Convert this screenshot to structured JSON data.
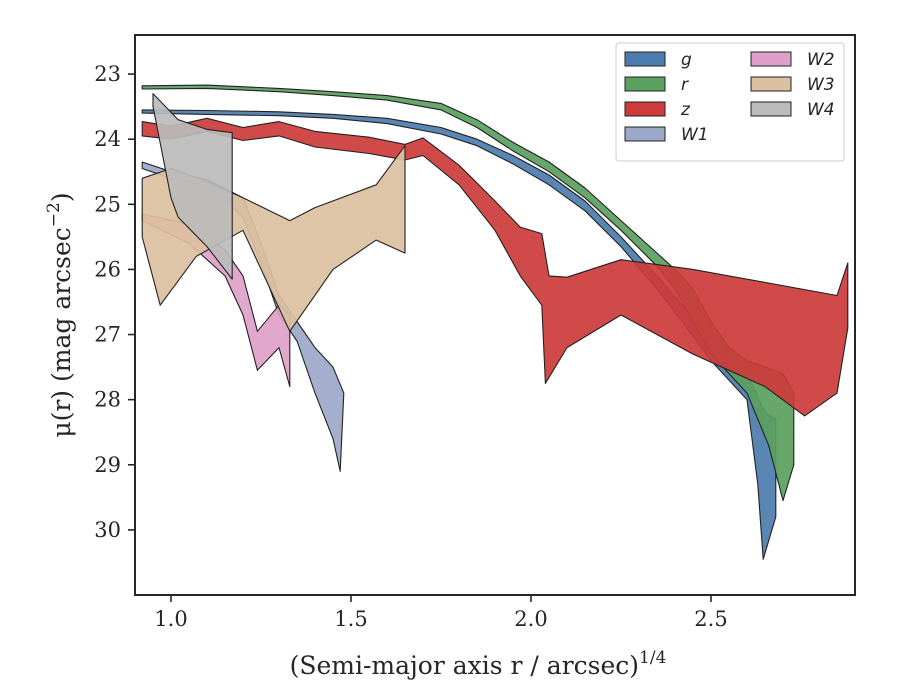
{
  "chart_data": {
    "type": "area",
    "xlabel": "(Semi-major axis r / arcsec)",
    "xlabel_superscript": "1/4",
    "ylabel": "μ(r) (mag arcsec",
    "ylabel_superscript": "−2",
    "ylabel_close": ")",
    "xlim": [
      0.9,
      2.9
    ],
    "ylim": [
      31.0,
      22.4
    ],
    "y_inverted": true,
    "x_ticks": [
      1.0,
      1.5,
      2.0,
      2.5
    ],
    "x_tick_labels": [
      "1.0",
      "1.5",
      "2.0",
      "2.5"
    ],
    "y_ticks": [
      23,
      24,
      25,
      26,
      27,
      28,
      29,
      30
    ],
    "y_tick_labels": [
      "23",
      "24",
      "25",
      "26",
      "27",
      "28",
      "29",
      "30"
    ],
    "grid": false,
    "legend_placement": "top-right",
    "legend_columns": 2,
    "series": [
      {
        "name": "g",
        "color": "#4c7cad",
        "upper": [
          [
            0.92,
            23.55
          ],
          [
            1.1,
            23.56
          ],
          [
            1.3,
            23.58
          ],
          [
            1.45,
            23.62
          ],
          [
            1.6,
            23.68
          ],
          [
            1.75,
            23.82
          ],
          [
            1.85,
            24.0
          ],
          [
            1.95,
            24.25
          ],
          [
            2.05,
            24.55
          ],
          [
            2.15,
            24.95
          ],
          [
            2.25,
            25.5
          ],
          [
            2.35,
            26.1
          ],
          [
            2.42,
            26.55
          ],
          [
            2.5,
            27.1
          ],
          [
            2.55,
            27.5
          ],
          [
            2.6,
            27.6
          ],
          [
            2.65,
            28.2
          ],
          [
            2.68,
            28.3
          ]
        ],
        "lower": [
          [
            0.92,
            23.6
          ],
          [
            1.1,
            23.62
          ],
          [
            1.3,
            23.64
          ],
          [
            1.45,
            23.68
          ],
          [
            1.6,
            23.76
          ],
          [
            1.75,
            23.92
          ],
          [
            1.85,
            24.1
          ],
          [
            1.95,
            24.38
          ],
          [
            2.05,
            24.7
          ],
          [
            2.15,
            25.1
          ],
          [
            2.25,
            25.65
          ],
          [
            2.35,
            26.3
          ],
          [
            2.42,
            26.8
          ],
          [
            2.5,
            27.4
          ],
          [
            2.55,
            27.7
          ],
          [
            2.6,
            28.0
          ],
          [
            2.63,
            29.3
          ],
          [
            2.645,
            30.45
          ],
          [
            2.68,
            29.8
          ]
        ]
      },
      {
        "name": "r",
        "color": "#5aa05e",
        "upper": [
          [
            0.92,
            23.18
          ],
          [
            1.1,
            23.17
          ],
          [
            1.3,
            23.22
          ],
          [
            1.45,
            23.27
          ],
          [
            1.6,
            23.33
          ],
          [
            1.75,
            23.45
          ],
          [
            1.85,
            23.7
          ],
          [
            1.95,
            24.05
          ],
          [
            2.05,
            24.35
          ],
          [
            2.15,
            24.75
          ],
          [
            2.25,
            25.25
          ],
          [
            2.35,
            25.75
          ],
          [
            2.4,
            26.0
          ],
          [
            2.45,
            26.3
          ],
          [
            2.5,
            26.8
          ],
          [
            2.55,
            27.2
          ],
          [
            2.6,
            27.4
          ],
          [
            2.7,
            27.6
          ],
          [
            2.73,
            27.9
          ]
        ],
        "lower": [
          [
            0.92,
            23.23
          ],
          [
            1.1,
            23.22
          ],
          [
            1.3,
            23.27
          ],
          [
            1.45,
            23.33
          ],
          [
            1.6,
            23.4
          ],
          [
            1.75,
            23.55
          ],
          [
            1.85,
            23.82
          ],
          [
            1.95,
            24.18
          ],
          [
            2.05,
            24.5
          ],
          [
            2.15,
            24.9
          ],
          [
            2.25,
            25.4
          ],
          [
            2.35,
            25.95
          ],
          [
            2.4,
            26.3
          ],
          [
            2.45,
            26.8
          ],
          [
            2.5,
            27.3
          ],
          [
            2.6,
            27.9
          ],
          [
            2.66,
            28.7
          ],
          [
            2.7,
            29.55
          ],
          [
            2.73,
            29.0
          ]
        ]
      },
      {
        "name": "z",
        "color": "#cd3b3b",
        "upper": [
          [
            0.92,
            23.73
          ],
          [
            1.0,
            23.8
          ],
          [
            1.1,
            23.68
          ],
          [
            1.2,
            23.82
          ],
          [
            1.3,
            23.73
          ],
          [
            1.4,
            23.88
          ],
          [
            1.55,
            23.97
          ],
          [
            1.65,
            24.08
          ],
          [
            1.7,
            23.98
          ],
          [
            1.8,
            24.4
          ],
          [
            1.9,
            24.95
          ],
          [
            1.97,
            25.35
          ],
          [
            2.03,
            25.45
          ],
          [
            2.05,
            26.1
          ],
          [
            2.1,
            26.12
          ],
          [
            2.25,
            25.85
          ],
          [
            2.45,
            26.0
          ],
          [
            2.65,
            26.2
          ],
          [
            2.85,
            26.4
          ],
          [
            2.88,
            25.9
          ]
        ],
        "lower": [
          [
            0.92,
            23.95
          ],
          [
            1.0,
            24.0
          ],
          [
            1.1,
            23.88
          ],
          [
            1.2,
            24.02
          ],
          [
            1.3,
            23.95
          ],
          [
            1.4,
            24.12
          ],
          [
            1.55,
            24.22
          ],
          [
            1.65,
            24.32
          ],
          [
            1.7,
            24.25
          ],
          [
            1.8,
            24.7
          ],
          [
            1.9,
            25.4
          ],
          [
            1.97,
            26.1
          ],
          [
            2.03,
            26.55
          ],
          [
            2.04,
            27.75
          ],
          [
            2.1,
            27.2
          ],
          [
            2.25,
            26.7
          ],
          [
            2.45,
            27.3
          ],
          [
            2.65,
            27.8
          ],
          [
            2.76,
            28.25
          ],
          [
            2.85,
            27.9
          ],
          [
            2.88,
            26.9
          ]
        ]
      },
      {
        "name": "W1",
        "color": "#9ba8c8",
        "upper": [
          [
            0.92,
            24.35
          ],
          [
            1.0,
            24.5
          ],
          [
            1.1,
            24.62
          ],
          [
            1.2,
            24.9
          ],
          [
            1.25,
            25.6
          ],
          [
            1.3,
            26.4
          ],
          [
            1.35,
            26.8
          ],
          [
            1.4,
            27.2
          ],
          [
            1.45,
            27.5
          ],
          [
            1.48,
            27.9
          ]
        ],
        "lower": [
          [
            0.92,
            24.45
          ],
          [
            1.0,
            24.6
          ],
          [
            1.1,
            24.72
          ],
          [
            1.2,
            25.2
          ],
          [
            1.25,
            25.9
          ],
          [
            1.3,
            26.7
          ],
          [
            1.35,
            27.1
          ],
          [
            1.4,
            27.9
          ],
          [
            1.45,
            28.6
          ],
          [
            1.47,
            29.1
          ]
        ]
      },
      {
        "name": "W2",
        "color": "#dea0c8",
        "upper": [
          [
            0.92,
            25.15
          ],
          [
            1.05,
            25.3
          ],
          [
            1.15,
            25.7
          ],
          [
            1.2,
            26.1
          ],
          [
            1.24,
            26.95
          ],
          [
            1.3,
            26.55
          ],
          [
            1.33,
            26.7
          ]
        ],
        "lower": [
          [
            0.92,
            25.25
          ],
          [
            1.05,
            25.6
          ],
          [
            1.15,
            26.1
          ],
          [
            1.2,
            26.7
          ],
          [
            1.24,
            27.55
          ],
          [
            1.3,
            27.2
          ],
          [
            1.33,
            27.8
          ]
        ]
      },
      {
        "name": "W3",
        "color": "#dcc0a0",
        "upper": [
          [
            0.92,
            24.6
          ],
          [
            1.0,
            24.45
          ],
          [
            1.1,
            24.65
          ],
          [
            1.2,
            24.9
          ],
          [
            1.33,
            25.25
          ],
          [
            1.4,
            25.05
          ],
          [
            1.57,
            24.7
          ],
          [
            1.65,
            24.1
          ]
        ],
        "lower": [
          [
            0.92,
            25.5
          ],
          [
            0.97,
            26.55
          ],
          [
            1.07,
            25.8
          ],
          [
            1.2,
            25.4
          ],
          [
            1.33,
            26.95
          ],
          [
            1.45,
            26.0
          ],
          [
            1.57,
            25.55
          ],
          [
            1.65,
            25.75
          ]
        ]
      },
      {
        "name": "W4",
        "color": "#bbbbbb",
        "upper": [
          [
            0.95,
            23.3
          ],
          [
            1.02,
            23.7
          ],
          [
            1.1,
            23.85
          ],
          [
            1.17,
            23.9
          ]
        ],
        "lower": [
          [
            0.95,
            23.5
          ],
          [
            1.0,
            24.9
          ],
          [
            1.02,
            25.2
          ],
          [
            1.1,
            25.65
          ],
          [
            1.17,
            26.15
          ]
        ]
      }
    ]
  }
}
